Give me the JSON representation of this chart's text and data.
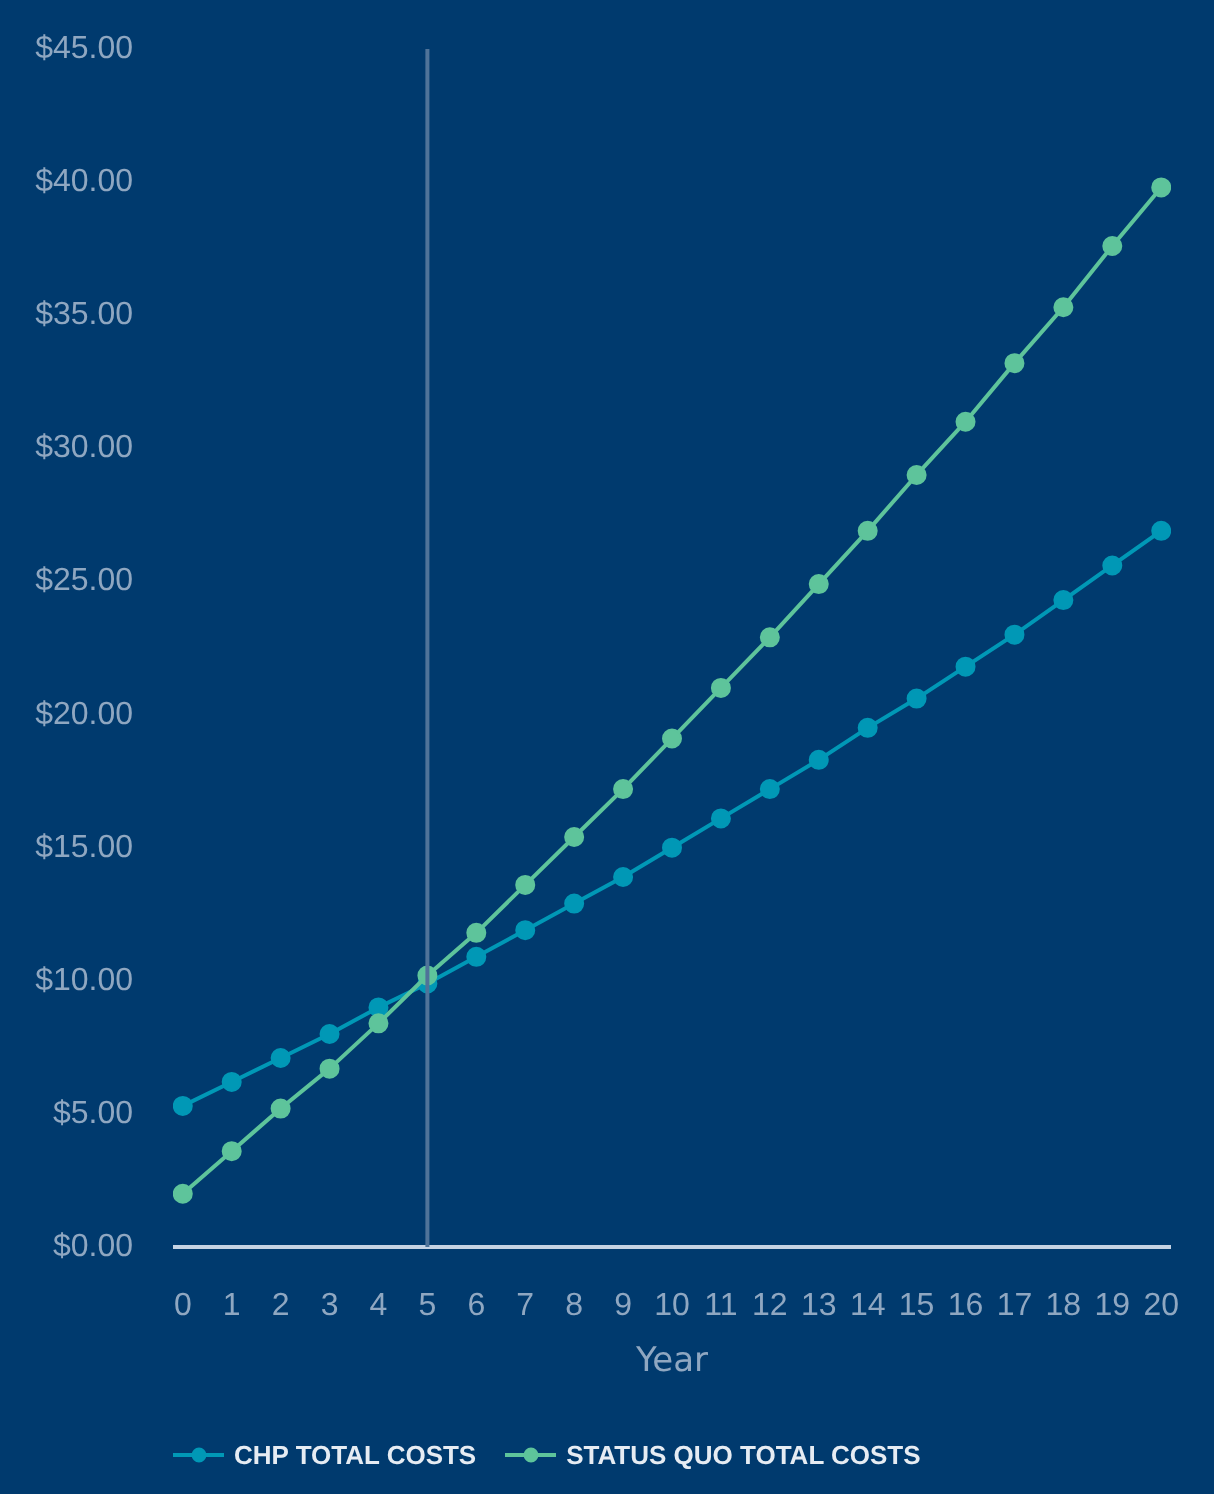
{
  "chart_data": {
    "type": "line",
    "xlabel": "Year",
    "x": [
      0,
      1,
      2,
      3,
      4,
      5,
      6,
      7,
      8,
      9,
      10,
      11,
      12,
      13,
      14,
      15,
      16,
      17,
      18,
      19,
      20
    ],
    "xlim": [
      -0.2,
      20.2
    ],
    "xticks": [
      0,
      1,
      2,
      3,
      4,
      5,
      6,
      7,
      8,
      9,
      10,
      11,
      12,
      13,
      14,
      15,
      16,
      17,
      18,
      19,
      20
    ],
    "ylim": [
      0,
      45
    ],
    "yticks": [
      {
        "value": 0,
        "label": "$0.00"
      },
      {
        "value": 5,
        "label": "$5.00"
      },
      {
        "value": 10,
        "label": "$10.00"
      },
      {
        "value": 15,
        "label": "$15.00"
      },
      {
        "value": 20,
        "label": "$20.00"
      },
      {
        "value": 25,
        "label": "$25.00"
      },
      {
        "value": 30,
        "label": "$30.00"
      },
      {
        "value": 35,
        "label": "$35.00"
      },
      {
        "value": 40,
        "label": "$40.00"
      },
      {
        "value": 45,
        "label": "$45.00"
      }
    ],
    "series": [
      {
        "name": "CHP TOTAL COSTS",
        "color": "#0098b6",
        "values": [
          5.3,
          6.2,
          7.1,
          8.0,
          9.0,
          9.9,
          10.9,
          11.9,
          12.9,
          13.9,
          15.0,
          16.1,
          17.2,
          18.3,
          19.5,
          20.6,
          21.8,
          23.0,
          24.3,
          25.6,
          26.9
        ]
      },
      {
        "name": "STATUS QUO TOTAL COSTS",
        "color": "#5ec49b",
        "values": [
          2.0,
          3.6,
          5.2,
          6.7,
          8.4,
          10.2,
          11.8,
          13.6,
          15.4,
          17.2,
          19.1,
          21.0,
          22.9,
          24.9,
          26.9,
          29.0,
          31.0,
          33.2,
          35.3,
          37.6,
          39.8
        ]
      }
    ],
    "ref_lines": [
      {
        "axis": "x",
        "value": 5,
        "color": "#4f7399"
      }
    ],
    "marker": "circle",
    "line_style": "solid",
    "legend": "bottom",
    "grid": false
  }
}
